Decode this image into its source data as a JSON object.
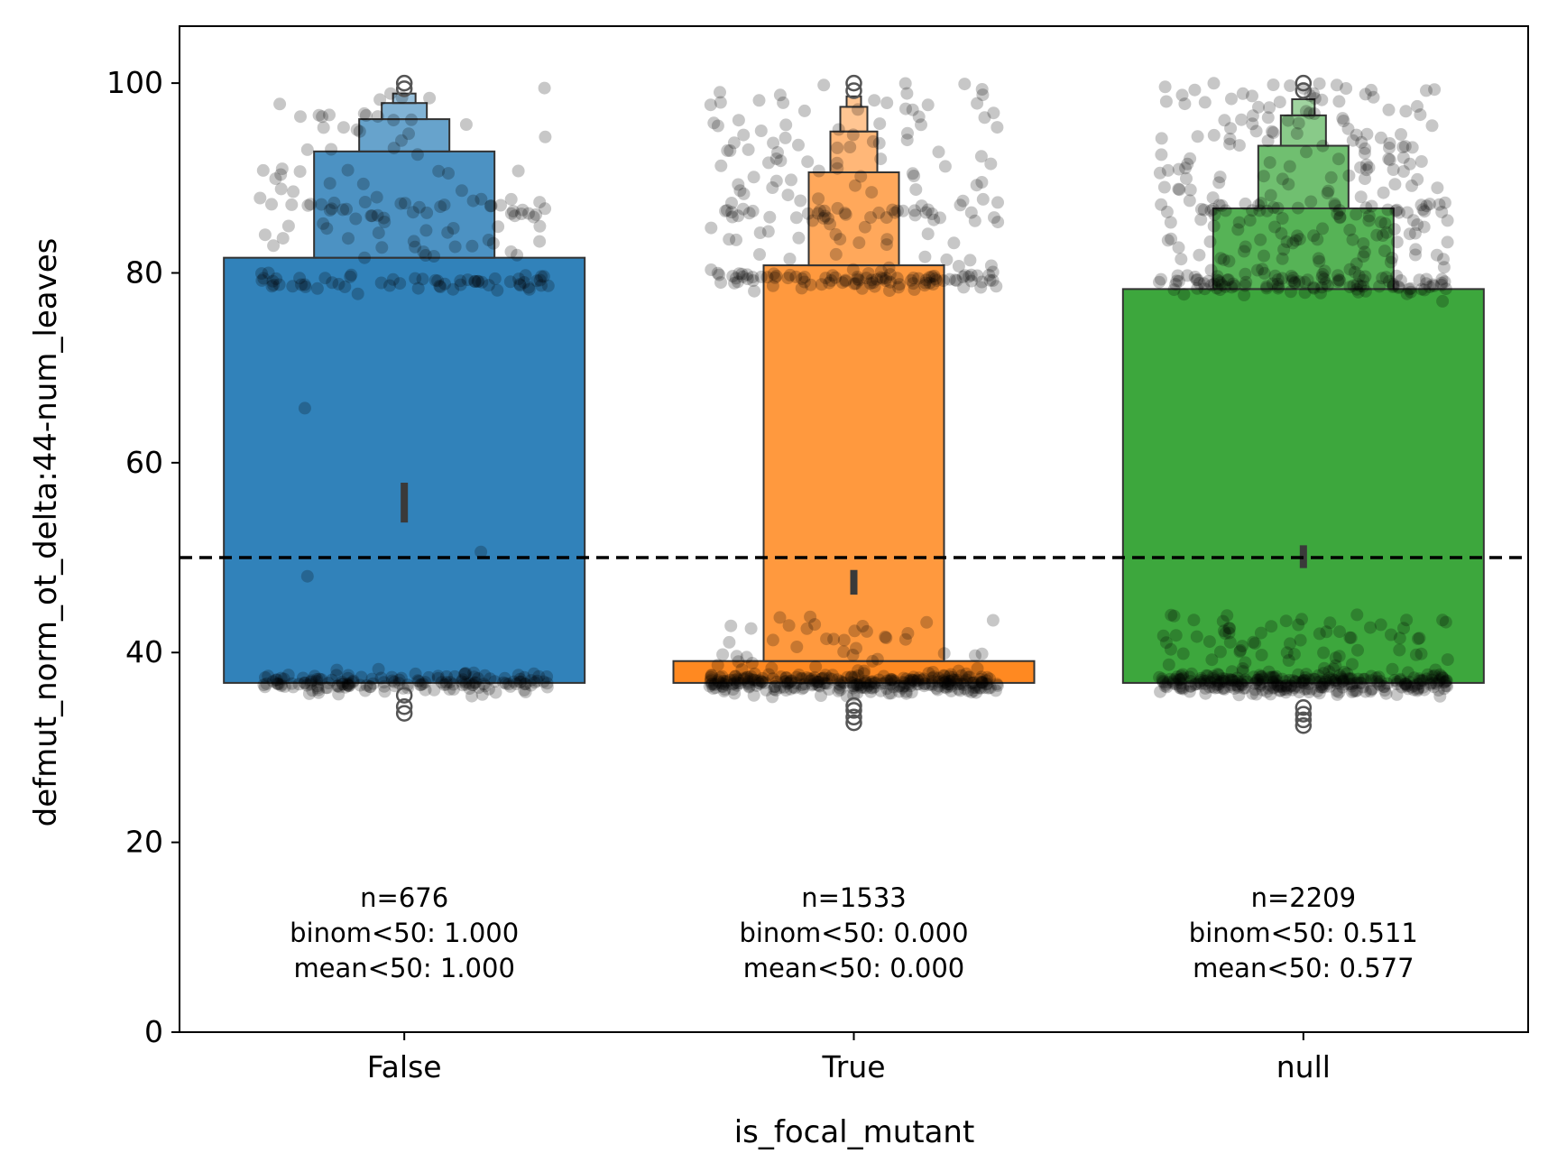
{
  "chart_data": {
    "type": "boxen",
    "xlabel": "is_focal_mutant",
    "ylabel": "defmut_norm_ot_delta:44-num_leaves",
    "ylim": [
      0,
      106
    ],
    "yticks": [
      0,
      20,
      40,
      60,
      80,
      100
    ],
    "yticks_labels": [
      "0",
      "20",
      "40",
      "60",
      "80",
      "100"
    ],
    "categories": [
      "False",
      "True",
      "null"
    ],
    "reference_line": {
      "y": 50,
      "style": "dashed",
      "color": "#000000"
    },
    "groups": [
      {
        "category": "False",
        "color": "#1f77b4",
        "boxes": [
          {
            "low": 36.8,
            "high": 81.6
          },
          {
            "low": 81.6,
            "high": 92.8
          },
          {
            "low": 92.8,
            "high": 96.2
          },
          {
            "low": 96.2,
            "high": 97.9
          },
          {
            "low": 97.9,
            "high": 98.9
          }
        ],
        "median": [
          53.7,
          57.9
        ],
        "outliers": [
          99.4,
          100.0,
          35.5,
          34.3,
          33.6
        ],
        "clusters": [
          {
            "center": 36.8,
            "spread": 0.9,
            "count": 160
          },
          {
            "center": 79.0,
            "spread": 0.9,
            "count": 60
          },
          {
            "center": 87.0,
            "spread": 0.6,
            "count": 20
          },
          {
            "uniform": [
              81.5,
              100
            ],
            "count": 90
          },
          {
            "uniform": [
              38.5,
              78
            ],
            "count": 3
          }
        ],
        "annotations": [
          "n=676",
          "binom<50: 1.000",
          "mean<50: 1.000"
        ]
      },
      {
        "category": "True",
        "color": "#ff7f0e",
        "boxes": [
          {
            "low": 36.8,
            "high": 39.1
          },
          {
            "low": 39.1,
            "high": 80.8
          },
          {
            "low": 80.8,
            "high": 90.6
          },
          {
            "low": 90.6,
            "high": 94.9
          },
          {
            "low": 94.9,
            "high": 97.5
          },
          {
            "low": 97.5,
            "high": 98.6
          }
        ],
        "median": [
          46.1,
          48.7
        ],
        "outliers": [
          99.2,
          100.0,
          34.4,
          33.9,
          33.2,
          32.6
        ],
        "clusters": [
          {
            "center": 36.8,
            "spread": 0.9,
            "count": 300
          },
          {
            "center": 79.3,
            "spread": 0.9,
            "count": 100
          },
          {
            "center": 86.3,
            "spread": 0.6,
            "count": 25
          },
          {
            "uniform": [
              81,
              100
            ],
            "count": 120
          },
          {
            "uniform": [
              38,
              44
            ],
            "count": 40
          }
        ],
        "annotations": [
          "n=1533",
          "binom<50: 0.000",
          "mean<50: 0.000"
        ]
      },
      {
        "category": "null",
        "color": "#2ca02c",
        "boxes": [
          {
            "low": 36.8,
            "high": 78.3
          },
          {
            "low": 78.3,
            "high": 86.8
          },
          {
            "low": 86.8,
            "high": 93.4
          },
          {
            "low": 93.4,
            "high": 96.6
          },
          {
            "low": 96.6,
            "high": 98.3
          }
        ],
        "median": [
          48.9,
          51.3
        ],
        "outliers": [
          99.2,
          100.0,
          34.2,
          33.5,
          32.9,
          32.3
        ],
        "clusters": [
          {
            "center": 36.8,
            "spread": 0.9,
            "count": 300
          },
          {
            "center": 78.8,
            "spread": 0.9,
            "count": 110
          },
          {
            "center": 86.8,
            "spread": 0.6,
            "count": 30
          },
          {
            "uniform": [
              80,
              100
            ],
            "count": 200
          },
          {
            "uniform": [
              38,
              44
            ],
            "count": 70
          }
        ],
        "annotations": [
          "n=2209",
          "binom<50: 0.511",
          "mean<50: 0.577"
        ]
      }
    ]
  }
}
